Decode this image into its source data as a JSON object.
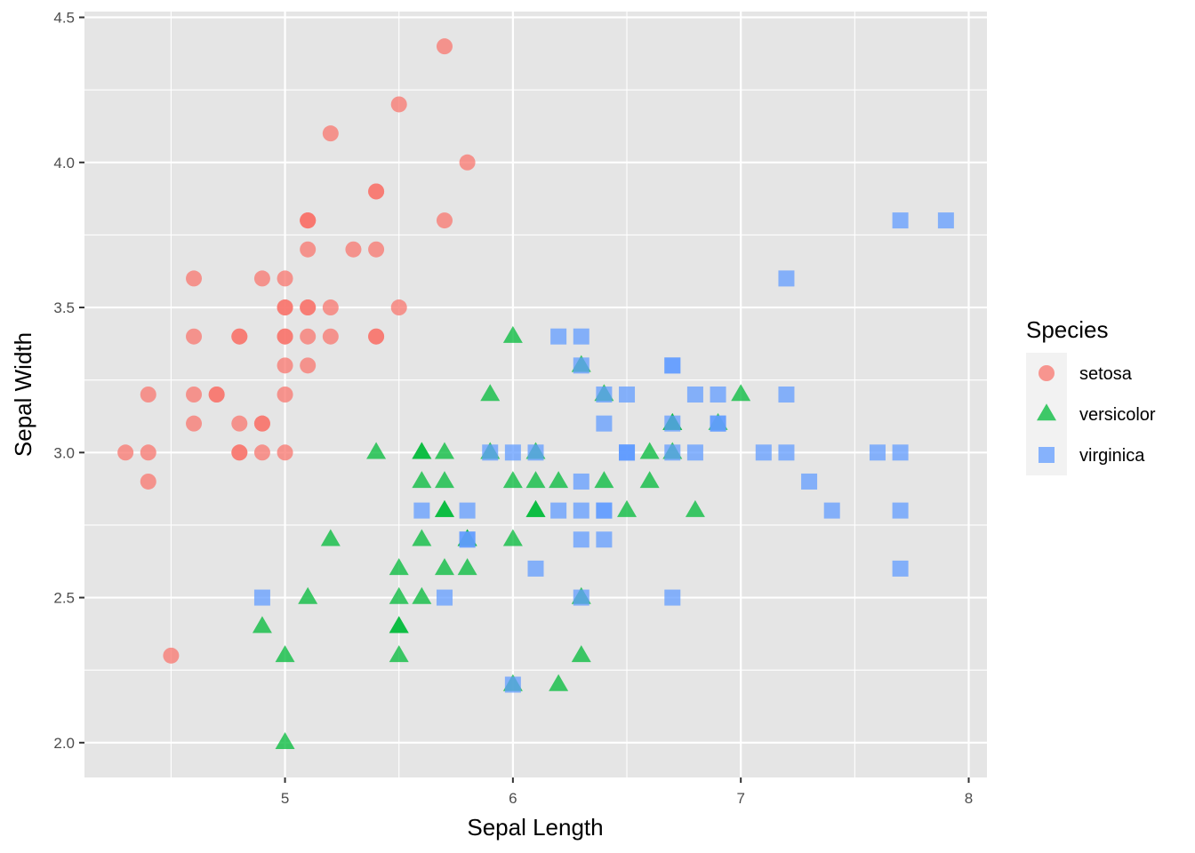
{
  "chart_data": {
    "type": "scatter",
    "title": "",
    "xlabel": "Sepal Length",
    "ylabel": "Sepal Width",
    "xlim": [
      4.12,
      8.08
    ],
    "ylim": [
      1.88,
      4.52
    ],
    "x_ticks": [
      5,
      6,
      7,
      8
    ],
    "x_tick_labels": [
      "5",
      "6",
      "7",
      "8"
    ],
    "y_ticks": [
      2.0,
      2.5,
      3.0,
      3.5,
      4.0,
      4.5
    ],
    "y_tick_labels": [
      "2.0",
      "2.5",
      "3.0",
      "3.5",
      "4.0",
      "4.5"
    ],
    "grid": true,
    "legend": {
      "title": "Species",
      "position": "right",
      "entries": [
        {
          "label": "setosa",
          "shape": "circle",
          "color": "#F8766D"
        },
        {
          "label": "versicolor",
          "shape": "triangle",
          "color": "#00BA38"
        },
        {
          "label": "virginica",
          "shape": "square",
          "color": "#619CFF"
        }
      ]
    },
    "colors": {
      "panel_background": "#E5E5E5",
      "grid_major": "#FFFFFF",
      "setosa": "#F8766D",
      "versicolor": "#00BA38",
      "virginica": "#619CFF"
    },
    "series": [
      {
        "name": "setosa",
        "shape": "circle",
        "color": "#F8766D",
        "points": [
          [
            5.1,
            3.5
          ],
          [
            4.9,
            3.0
          ],
          [
            4.7,
            3.2
          ],
          [
            4.6,
            3.1
          ],
          [
            5.0,
            3.6
          ],
          [
            5.4,
            3.9
          ],
          [
            4.6,
            3.4
          ],
          [
            5.0,
            3.4
          ],
          [
            4.4,
            2.9
          ],
          [
            4.9,
            3.1
          ],
          [
            5.4,
            3.7
          ],
          [
            4.8,
            3.4
          ],
          [
            4.8,
            3.0
          ],
          [
            4.3,
            3.0
          ],
          [
            5.8,
            4.0
          ],
          [
            5.7,
            4.4
          ],
          [
            5.4,
            3.9
          ],
          [
            5.1,
            3.5
          ],
          [
            5.7,
            3.8
          ],
          [
            5.1,
            3.8
          ],
          [
            5.4,
            3.4
          ],
          [
            5.1,
            3.7
          ],
          [
            4.6,
            3.6
          ],
          [
            5.1,
            3.3
          ],
          [
            4.8,
            3.4
          ],
          [
            5.0,
            3.0
          ],
          [
            5.0,
            3.4
          ],
          [
            5.2,
            3.5
          ],
          [
            5.2,
            3.4
          ],
          [
            4.7,
            3.2
          ],
          [
            4.8,
            3.1
          ],
          [
            5.4,
            3.4
          ],
          [
            5.2,
            4.1
          ],
          [
            5.5,
            4.2
          ],
          [
            4.9,
            3.1
          ],
          [
            5.0,
            3.2
          ],
          [
            5.5,
            3.5
          ],
          [
            4.9,
            3.6
          ],
          [
            4.4,
            3.0
          ],
          [
            5.1,
            3.4
          ],
          [
            5.0,
            3.5
          ],
          [
            4.5,
            2.3
          ],
          [
            4.4,
            3.2
          ],
          [
            5.0,
            3.5
          ],
          [
            5.1,
            3.8
          ],
          [
            4.8,
            3.0
          ],
          [
            5.1,
            3.8
          ],
          [
            4.6,
            3.2
          ],
          [
            5.3,
            3.7
          ],
          [
            5.0,
            3.3
          ]
        ]
      },
      {
        "name": "versicolor",
        "shape": "triangle",
        "color": "#00BA38",
        "points": [
          [
            7.0,
            3.2
          ],
          [
            6.4,
            3.2
          ],
          [
            6.9,
            3.1
          ],
          [
            5.5,
            2.3
          ],
          [
            6.5,
            2.8
          ],
          [
            5.7,
            2.8
          ],
          [
            6.3,
            3.3
          ],
          [
            4.9,
            2.4
          ],
          [
            6.6,
            2.9
          ],
          [
            5.2,
            2.7
          ],
          [
            5.0,
            2.0
          ],
          [
            5.9,
            3.0
          ],
          [
            6.0,
            2.2
          ],
          [
            6.1,
            2.9
          ],
          [
            5.6,
            2.9
          ],
          [
            6.7,
            3.1
          ],
          [
            5.6,
            3.0
          ],
          [
            5.8,
            2.7
          ],
          [
            6.2,
            2.2
          ],
          [
            5.6,
            2.5
          ],
          [
            5.9,
            3.2
          ],
          [
            6.1,
            2.8
          ],
          [
            6.3,
            2.5
          ],
          [
            6.1,
            2.8
          ],
          [
            6.4,
            2.9
          ],
          [
            6.6,
            3.0
          ],
          [
            6.8,
            2.8
          ],
          [
            6.7,
            3.0
          ],
          [
            6.0,
            2.9
          ],
          [
            5.7,
            2.6
          ],
          [
            5.5,
            2.4
          ],
          [
            5.5,
            2.4
          ],
          [
            5.8,
            2.7
          ],
          [
            6.0,
            2.7
          ],
          [
            5.4,
            3.0
          ],
          [
            6.0,
            3.4
          ],
          [
            6.7,
            3.1
          ],
          [
            6.3,
            2.3
          ],
          [
            5.6,
            3.0
          ],
          [
            5.5,
            2.5
          ],
          [
            5.5,
            2.6
          ],
          [
            6.1,
            3.0
          ],
          [
            5.8,
            2.6
          ],
          [
            5.0,
            2.3
          ],
          [
            5.6,
            2.7
          ],
          [
            5.7,
            3.0
          ],
          [
            5.7,
            2.9
          ],
          [
            6.2,
            2.9
          ],
          [
            5.1,
            2.5
          ],
          [
            5.7,
            2.8
          ]
        ]
      },
      {
        "name": "virginica",
        "shape": "square",
        "color": "#619CFF",
        "points": [
          [
            6.3,
            3.3
          ],
          [
            5.8,
            2.7
          ],
          [
            7.1,
            3.0
          ],
          [
            6.3,
            2.9
          ],
          [
            6.5,
            3.0
          ],
          [
            7.6,
            3.0
          ],
          [
            4.9,
            2.5
          ],
          [
            7.3,
            2.9
          ],
          [
            6.7,
            2.5
          ],
          [
            7.2,
            3.6
          ],
          [
            6.5,
            3.2
          ],
          [
            6.4,
            2.7
          ],
          [
            6.8,
            3.0
          ],
          [
            5.7,
            2.5
          ],
          [
            5.8,
            2.8
          ],
          [
            6.4,
            3.2
          ],
          [
            6.5,
            3.0
          ],
          [
            7.7,
            3.8
          ],
          [
            7.7,
            2.6
          ],
          [
            6.0,
            2.2
          ],
          [
            6.9,
            3.2
          ],
          [
            5.6,
            2.8
          ],
          [
            7.7,
            2.8
          ],
          [
            6.3,
            2.7
          ],
          [
            6.7,
            3.3
          ],
          [
            7.2,
            3.2
          ],
          [
            6.2,
            2.8
          ],
          [
            6.1,
            3.0
          ],
          [
            6.4,
            2.8
          ],
          [
            7.2,
            3.0
          ],
          [
            7.4,
            2.8
          ],
          [
            7.9,
            3.8
          ],
          [
            6.4,
            2.8
          ],
          [
            6.3,
            2.8
          ],
          [
            6.1,
            2.6
          ],
          [
            7.7,
            3.0
          ],
          [
            6.3,
            3.4
          ],
          [
            6.4,
            3.1
          ],
          [
            6.0,
            3.0
          ],
          [
            6.9,
            3.1
          ],
          [
            6.7,
            3.1
          ],
          [
            6.9,
            3.1
          ],
          [
            5.8,
            2.7
          ],
          [
            6.8,
            3.2
          ],
          [
            6.7,
            3.3
          ],
          [
            6.7,
            3.0
          ],
          [
            6.3,
            2.5
          ],
          [
            6.5,
            3.0
          ],
          [
            6.2,
            3.4
          ],
          [
            5.9,
            3.0
          ]
        ]
      }
    ]
  }
}
